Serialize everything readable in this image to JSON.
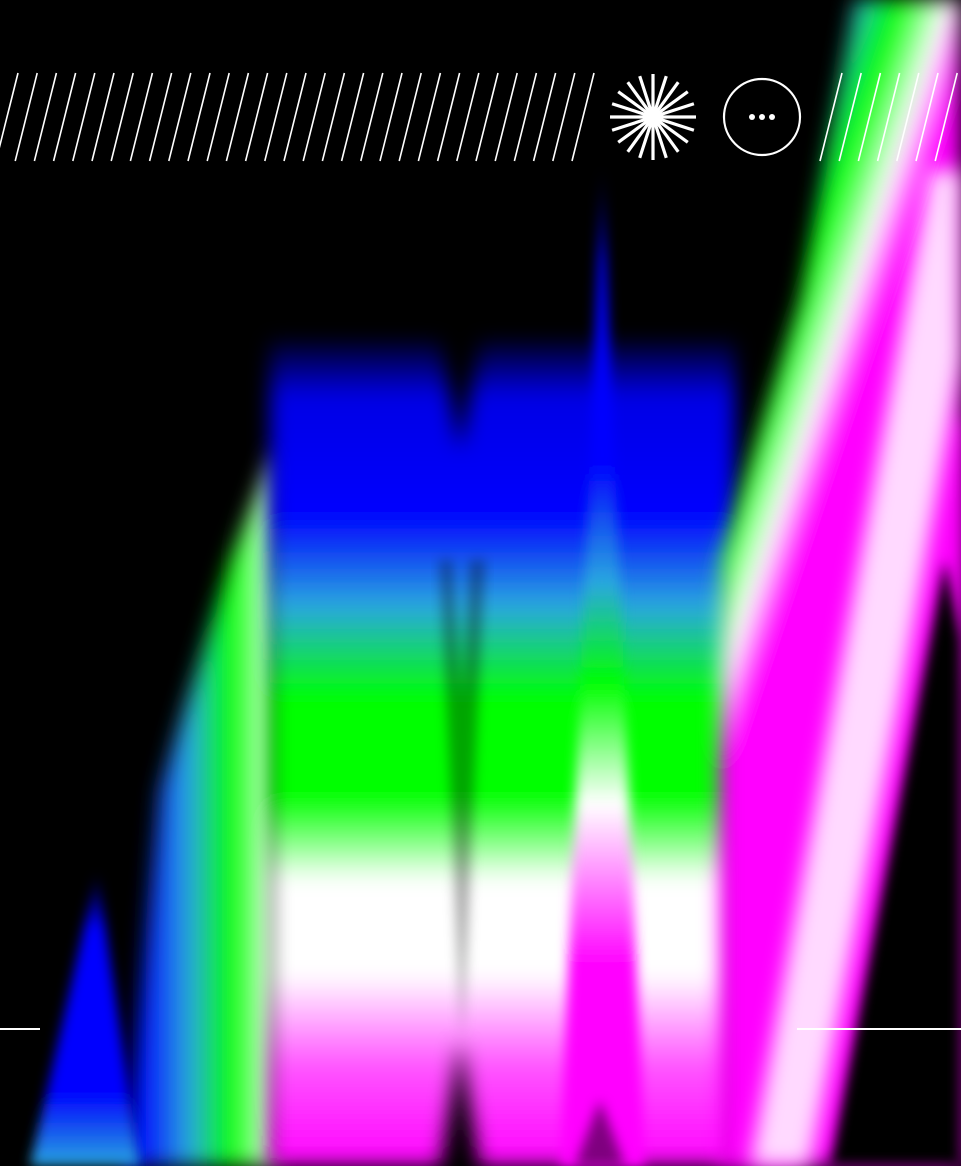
{
  "artwork": {
    "background_color": "#000000",
    "palette": {
      "blue": "#0000FF",
      "cyan": "#2AA7E0",
      "green": "#00FF00",
      "white": "#FFFFFF",
      "magenta": "#FF00FF"
    }
  },
  "header": {
    "pattern": "diagonal-stripes",
    "star_icon": "starburst-icon",
    "more_icon": "more-options-icon",
    "line_color": "#FFFFFF"
  },
  "footer": {
    "divider_color": "#FFFFFF"
  }
}
